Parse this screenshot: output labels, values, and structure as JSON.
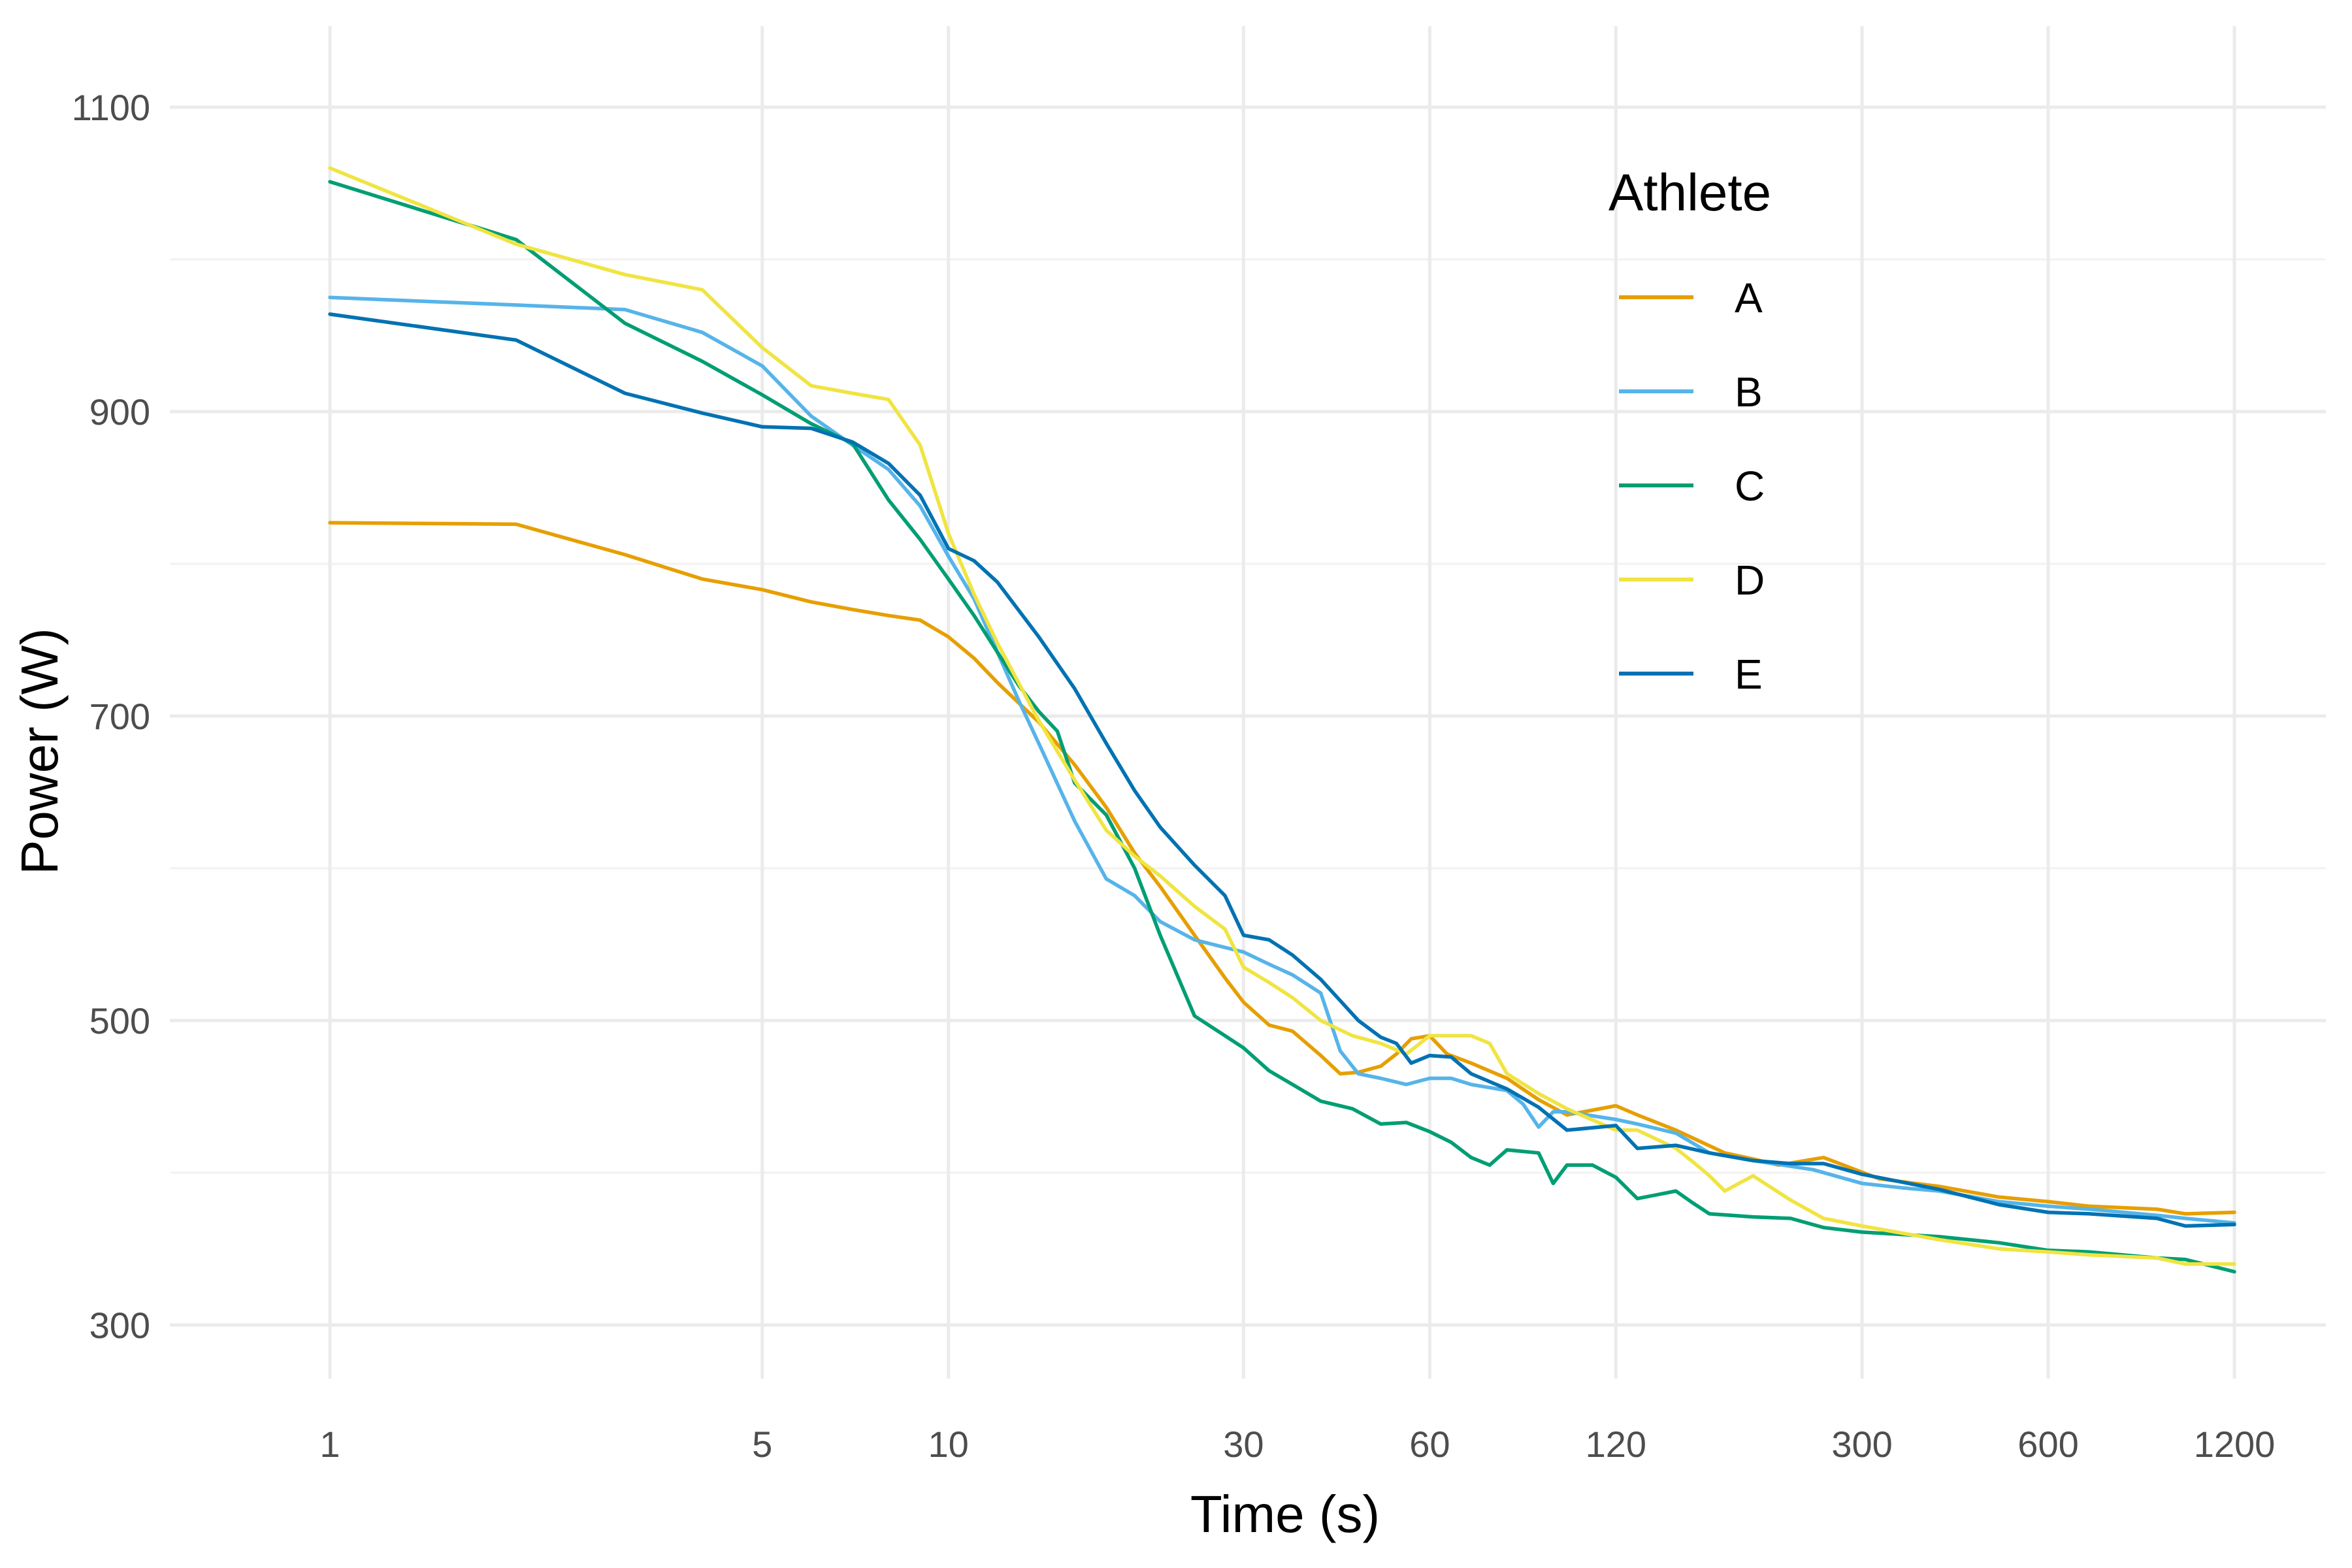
{
  "chart_data": {
    "type": "line",
    "title": "",
    "xlabel": "Time (s)",
    "ylabel": "Power (W)",
    "x_scale": "log",
    "xlim": [
      1,
      1200
    ],
    "ylim": [
      250,
      1150
    ],
    "x_ticks": [
      1,
      5,
      10,
      30,
      60,
      120,
      300,
      600,
      1200
    ],
    "x_tick_labels": [
      "1",
      "5",
      "10",
      "30",
      "60",
      "120",
      "300",
      "600",
      "1200"
    ],
    "y_ticks": [
      300,
      500,
      700,
      900,
      1100
    ],
    "y_tick_labels": [
      "300",
      "500",
      "700",
      "900",
      "1100"
    ],
    "y_minor_ticks": [
      400,
      600,
      800,
      1000
    ],
    "grid": true,
    "legend": {
      "title": "Athlete",
      "position": "top-right-inside"
    },
    "series": [
      {
        "name": "A",
        "color": "#E69F00",
        "points": [
          [
            1,
            827
          ],
          [
            2,
            826
          ],
          [
            3,
            806
          ],
          [
            4,
            790
          ],
          [
            5,
            783
          ],
          [
            6,
            775
          ],
          [
            7,
            770
          ],
          [
            8,
            766
          ],
          [
            9,
            763
          ],
          [
            10,
            752
          ],
          [
            11,
            738
          ],
          [
            12,
            722
          ],
          [
            14,
            696
          ],
          [
            16,
            668
          ],
          [
            18,
            640
          ],
          [
            20,
            610
          ],
          [
            22,
            588
          ],
          [
            25,
            556
          ],
          [
            28,
            528
          ],
          [
            30,
            512
          ],
          [
            33,
            497
          ],
          [
            36,
            493
          ],
          [
            40,
            477
          ],
          [
            43,
            465
          ],
          [
            46,
            466
          ],
          [
            50,
            470
          ],
          [
            53,
            478
          ],
          [
            56,
            488
          ],
          [
            60,
            490
          ],
          [
            64,
            478
          ],
          [
            70,
            472
          ],
          [
            80,
            462
          ],
          [
            90,
            448
          ],
          [
            100,
            438
          ],
          [
            120,
            444
          ],
          [
            130,
            438
          ],
          [
            150,
            428
          ],
          [
            180,
            413
          ],
          [
            200,
            409
          ],
          [
            220,
            405
          ],
          [
            260,
            410
          ],
          [
            280,
            405
          ],
          [
            320,
            396
          ],
          [
            400,
            391
          ],
          [
            500,
            384
          ],
          [
            600,
            381
          ],
          [
            700,
            378
          ],
          [
            900,
            376
          ],
          [
            1000,
            373
          ],
          [
            1200,
            374
          ]
        ]
      },
      {
        "name": "B",
        "color": "#56B4E9",
        "points": [
          [
            1,
            975
          ],
          [
            2,
            970
          ],
          [
            3,
            967
          ],
          [
            4,
            952
          ],
          [
            5,
            930
          ],
          [
            6,
            897
          ],
          [
            7,
            878
          ],
          [
            8,
            862
          ],
          [
            9,
            838
          ],
          [
            10,
            805
          ],
          [
            11,
            777
          ],
          [
            12,
            742
          ],
          [
            13,
            710
          ],
          [
            14,
            682
          ],
          [
            16,
            631
          ],
          [
            18,
            593
          ],
          [
            20,
            582
          ],
          [
            22,
            565
          ],
          [
            25,
            553
          ],
          [
            28,
            548
          ],
          [
            30,
            545
          ],
          [
            33,
            537
          ],
          [
            36,
            530
          ],
          [
            40,
            518
          ],
          [
            43,
            480
          ],
          [
            46,
            465
          ],
          [
            50,
            462
          ],
          [
            55,
            458
          ],
          [
            60,
            462
          ],
          [
            65,
            462
          ],
          [
            70,
            458
          ],
          [
            80,
            454
          ],
          [
            85,
            445
          ],
          [
            90,
            430
          ],
          [
            95,
            440
          ],
          [
            100,
            440
          ],
          [
            120,
            435
          ],
          [
            130,
            432
          ],
          [
            150,
            426
          ],
          [
            170,
            413
          ],
          [
            200,
            408
          ],
          [
            250,
            402
          ],
          [
            300,
            393
          ],
          [
            350,
            390
          ],
          [
            400,
            388
          ],
          [
            500,
            381
          ],
          [
            600,
            378
          ],
          [
            700,
            376
          ],
          [
            900,
            372
          ],
          [
            1000,
            370
          ],
          [
            1200,
            367
          ]
        ]
      },
      {
        "name": "C",
        "color": "#009E73",
        "points": [
          [
            1,
            1051
          ],
          [
            2,
            1013
          ],
          [
            3,
            958
          ],
          [
            4,
            933
          ],
          [
            5,
            911
          ],
          [
            6,
            892
          ],
          [
            7,
            879
          ],
          [
            8,
            842
          ],
          [
            9,
            816
          ],
          [
            10,
            790
          ],
          [
            11,
            766
          ],
          [
            12,
            742
          ],
          [
            13,
            720
          ],
          [
            14,
            703
          ],
          [
            15,
            690
          ],
          [
            16,
            656
          ],
          [
            18,
            635
          ],
          [
            20,
            600
          ],
          [
            22,
            556
          ],
          [
            25,
            503
          ],
          [
            28,
            490
          ],
          [
            30,
            482
          ],
          [
            33,
            467
          ],
          [
            36,
            458
          ],
          [
            40,
            447
          ],
          [
            45,
            442
          ],
          [
            50,
            432
          ],
          [
            55,
            433
          ],
          [
            60,
            427
          ],
          [
            65,
            420
          ],
          [
            70,
            410
          ],
          [
            75,
            405
          ],
          [
            80,
            415
          ],
          [
            90,
            413
          ],
          [
            95,
            393
          ],
          [
            100,
            405
          ],
          [
            110,
            405
          ],
          [
            120,
            397
          ],
          [
            130,
            383
          ],
          [
            150,
            388
          ],
          [
            160,
            380
          ],
          [
            170,
            373
          ],
          [
            200,
            371
          ],
          [
            230,
            370
          ],
          [
            260,
            364
          ],
          [
            300,
            361
          ],
          [
            400,
            358
          ],
          [
            500,
            354
          ],
          [
            600,
            349
          ],
          [
            700,
            348
          ],
          [
            900,
            344
          ],
          [
            1000,
            343
          ],
          [
            1200,
            335
          ]
        ]
      },
      {
        "name": "D",
        "color": "#F0E442",
        "points": [
          [
            1,
            1060
          ],
          [
            2,
            1010
          ],
          [
            3,
            990
          ],
          [
            4,
            980
          ],
          [
            5,
            942
          ],
          [
            6,
            917
          ],
          [
            7,
            912
          ],
          [
            8,
            908
          ],
          [
            9,
            878
          ],
          [
            10,
            820
          ],
          [
            11,
            780
          ],
          [
            12,
            748
          ],
          [
            14,
            697
          ],
          [
            16,
            658
          ],
          [
            18,
            625
          ],
          [
            20,
            608
          ],
          [
            22,
            595
          ],
          [
            25,
            575
          ],
          [
            28,
            560
          ],
          [
            30,
            535
          ],
          [
            33,
            525
          ],
          [
            36,
            515
          ],
          [
            40,
            500
          ],
          [
            45,
            490
          ],
          [
            50,
            485
          ],
          [
            55,
            478
          ],
          [
            60,
            490
          ],
          [
            65,
            490
          ],
          [
            70,
            490
          ],
          [
            75,
            485
          ],
          [
            80,
            465
          ],
          [
            90,
            452
          ],
          [
            100,
            442
          ],
          [
            120,
            428
          ],
          [
            130,
            428
          ],
          [
            150,
            416
          ],
          [
            160,
            407
          ],
          [
            170,
            398
          ],
          [
            180,
            388
          ],
          [
            200,
            398
          ],
          [
            230,
            382
          ],
          [
            260,
            370
          ],
          [
            300,
            365
          ],
          [
            400,
            356
          ],
          [
            500,
            350
          ],
          [
            600,
            348
          ],
          [
            700,
            346
          ],
          [
            900,
            344
          ],
          [
            1000,
            340
          ],
          [
            1200,
            340
          ]
        ]
      },
      {
        "name": "E",
        "color": "#0072B2",
        "points": [
          [
            1,
            964
          ],
          [
            2,
            947
          ],
          [
            3,
            912
          ],
          [
            4,
            899
          ],
          [
            5,
            890
          ],
          [
            6,
            889
          ],
          [
            7,
            880
          ],
          [
            8,
            866
          ],
          [
            9,
            845
          ],
          [
            10,
            810
          ],
          [
            11,
            802
          ],
          [
            12,
            788
          ],
          [
            14,
            752
          ],
          [
            16,
            718
          ],
          [
            18,
            682
          ],
          [
            20,
            651
          ],
          [
            22,
            627
          ],
          [
            25,
            602
          ],
          [
            28,
            582
          ],
          [
            30,
            556
          ],
          [
            33,
            553
          ],
          [
            36,
            543
          ],
          [
            40,
            527
          ],
          [
            43,
            513
          ],
          [
            46,
            500
          ],
          [
            50,
            489
          ],
          [
            53,
            485
          ],
          [
            56,
            472
          ],
          [
            60,
            477
          ],
          [
            65,
            476
          ],
          [
            70,
            465
          ],
          [
            80,
            455
          ],
          [
            90,
            443
          ],
          [
            100,
            428
          ],
          [
            120,
            431
          ],
          [
            130,
            416
          ],
          [
            150,
            418
          ],
          [
            170,
            413
          ],
          [
            200,
            408
          ],
          [
            230,
            406
          ],
          [
            260,
            406
          ],
          [
            300,
            399
          ],
          [
            400,
            389
          ],
          [
            500,
            379
          ],
          [
            600,
            374
          ],
          [
            700,
            373
          ],
          [
            900,
            370
          ],
          [
            1000,
            365
          ],
          [
            1200,
            366
          ]
        ]
      }
    ]
  }
}
